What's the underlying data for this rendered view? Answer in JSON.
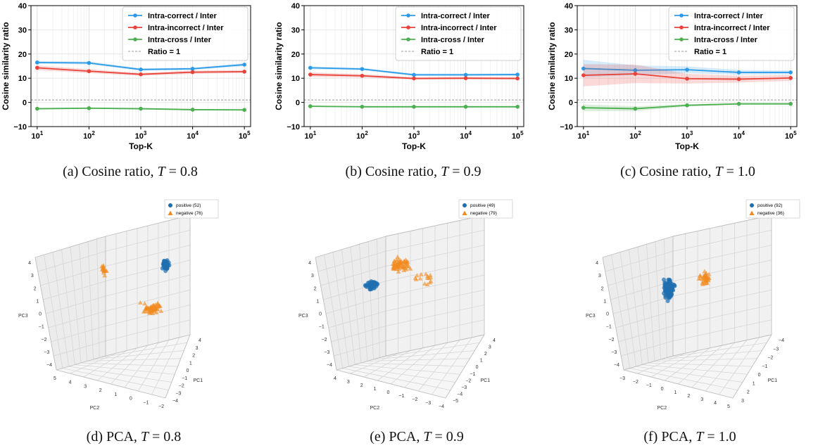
{
  "chart_data": [
    {
      "id": "a",
      "type": "line",
      "caption": {
        "prefix": "(a) Cosine ratio, ",
        "var": "T",
        "value": " = 0.8"
      },
      "xlabel": "Top-K",
      "ylabel": "Cosine similarity ratio",
      "xscale": "log",
      "xticks": [
        "10^1",
        "10^2",
        "10^3",
        "10^4",
        "10^5"
      ],
      "yticks": [
        "40",
        "30",
        "20",
        "10",
        "0",
        "−10"
      ],
      "ylim": [
        -10,
        40
      ],
      "grid": true,
      "legend": {
        "placement": "top-right",
        "entries": [
          "Intra-correct / Inter",
          "Intra-incorrect / Inter",
          "Intra-cross / Inter",
          "Ratio = 1"
        ]
      },
      "x": [
        10,
        100,
        1000,
        10000,
        100000
      ],
      "series": [
        {
          "name": "Intra-correct / Inter",
          "color": "#2b9be8",
          "values": [
            16.5,
            16.3,
            13.6,
            13.9,
            15.6
          ],
          "band": [
            0.6,
            0.6,
            0.5,
            0.5,
            0.6
          ]
        },
        {
          "name": "Intra-incorrect / Inter",
          "color": "#e8433a",
          "values": [
            14.3,
            12.9,
            11.6,
            12.5,
            12.7
          ],
          "band": [
            1.0,
            0.8,
            0.6,
            0.7,
            0.6
          ]
        },
        {
          "name": "Intra-cross / Inter",
          "color": "#4caf50",
          "values": [
            -2.6,
            -2.4,
            -2.6,
            -3.0,
            -3.1
          ],
          "band": [
            0.3,
            0.3,
            0.3,
            0.3,
            0.3
          ]
        }
      ],
      "reference_line": {
        "name": "Ratio = 1",
        "value": 1
      }
    },
    {
      "id": "b",
      "type": "line",
      "caption": {
        "prefix": "(b) Cosine ratio, ",
        "var": "T",
        "value": " = 0.9"
      },
      "xlabel": "Top-K",
      "ylabel": "Cosine similarity ratio",
      "xscale": "log",
      "xticks": [
        "10^1",
        "10^2",
        "10^3",
        "10^4",
        "10^5"
      ],
      "yticks": [
        "40",
        "30",
        "20",
        "10",
        "0",
        "−10"
      ],
      "ylim": [
        -10,
        40
      ],
      "grid": true,
      "legend": {
        "placement": "top-right",
        "entries": [
          "Intra-correct / Inter",
          "Intra-incorrect / Inter",
          "Intra-cross / Inter",
          "Ratio = 1"
        ]
      },
      "x": [
        10,
        100,
        1000,
        10000,
        100000
      ],
      "series": [
        {
          "name": "Intra-correct / Inter",
          "color": "#2b9be8",
          "values": [
            14.3,
            13.8,
            11.4,
            11.4,
            11.5
          ],
          "band": [
            0.6,
            0.5,
            0.5,
            0.5,
            0.5
          ]
        },
        {
          "name": "Intra-incorrect / Inter",
          "color": "#e8433a",
          "values": [
            11.5,
            11.0,
            9.9,
            10.0,
            9.9
          ],
          "band": [
            0.9,
            0.7,
            0.5,
            0.5,
            0.5
          ]
        },
        {
          "name": "Intra-cross / Inter",
          "color": "#4caf50",
          "values": [
            -1.6,
            -1.8,
            -1.8,
            -1.8,
            -1.8
          ],
          "band": [
            0.3,
            0.3,
            0.3,
            0.3,
            0.3
          ]
        }
      ],
      "reference_line": {
        "name": "Ratio = 1",
        "value": 1
      }
    },
    {
      "id": "c",
      "type": "line",
      "caption": {
        "prefix": "(c) Cosine ratio, ",
        "var": "T",
        "value": " = 1.0"
      },
      "xlabel": "Top-K",
      "ylabel": "Cosine similarity ratio",
      "xscale": "log",
      "xticks": [
        "10^1",
        "10^2",
        "10^3",
        "10^4",
        "10^5"
      ],
      "yticks": [
        "40",
        "30",
        "20",
        "10",
        "0",
        "−10"
      ],
      "ylim": [
        -10,
        40
      ],
      "grid": true,
      "legend": {
        "placement": "top-right",
        "entries": [
          "Intra-correct / Inter",
          "Intra-incorrect / Inter",
          "Intra-cross / Inter",
          "Ratio = 1"
        ]
      },
      "x": [
        10,
        100,
        1000,
        10000,
        100000
      ],
      "series": [
        {
          "name": "Intra-correct / Inter",
          "color": "#2b9be8",
          "values": [
            14.0,
            13.3,
            13.5,
            12.4,
            12.4
          ],
          "band": [
            3.6,
            2.0,
            1.4,
            1.0,
            0.8
          ]
        },
        {
          "name": "Intra-incorrect / Inter",
          "color": "#e8433a",
          "values": [
            11.2,
            11.8,
            9.8,
            9.6,
            10.1
          ],
          "band": [
            4.6,
            3.8,
            2.0,
            1.4,
            1.2
          ]
        },
        {
          "name": "Intra-cross / Inter",
          "color": "#4caf50",
          "values": [
            -2.2,
            -2.6,
            -1.2,
            -0.6,
            -0.6
          ],
          "band": [
            1.4,
            1.0,
            0.5,
            0.3,
            0.3
          ]
        }
      ],
      "reference_line": {
        "name": "Ratio = 1",
        "value": 1
      }
    },
    {
      "id": "d",
      "type": "scatter",
      "caption": {
        "prefix": "(d) PCA, ",
        "var": "T",
        "value": " = 0.8"
      },
      "xlabel": "PC1",
      "ylabel": "PC2",
      "zlabel": "PC3",
      "legend": {
        "placement": "top-right",
        "entries": [
          "positive (52)",
          "negative (76)"
        ]
      },
      "colors": {
        "positive": "#1f6fb0",
        "negative": "#f28a1e"
      },
      "ticks": {
        "z": [
          "4",
          "3",
          "2",
          "1",
          "0",
          "−1",
          "−2",
          "−3",
          "−4"
        ],
        "y": [
          "5",
          "4",
          "3",
          "2",
          "1",
          "0",
          "−1",
          "−2"
        ],
        "x": [
          "4",
          "3",
          "2",
          "1",
          "0",
          "−1",
          "−2",
          "−3",
          "−4"
        ]
      },
      "clusters": [
        {
          "label": "positive",
          "center": [
            215,
            101
          ],
          "spread": [
            6,
            10
          ],
          "count": 52
        },
        {
          "label": "negative",
          "center": [
            196,
            163
          ],
          "spread": [
            20,
            10
          ],
          "count": 60
        },
        {
          "label": "negative",
          "center": [
            128,
            108
          ],
          "spread": [
            7,
            12
          ],
          "count": 16
        }
      ]
    },
    {
      "id": "e",
      "type": "scatter",
      "caption": {
        "prefix": "(e) PCA, ",
        "var": "T",
        "value": " = 0.9"
      },
      "xlabel": "PC1",
      "ylabel": "PC2",
      "zlabel": "PC3",
      "legend": {
        "placement": "top-right",
        "entries": [
          "positive (49)",
          "negative (79)"
        ]
      },
      "colors": {
        "positive": "#1f6fb0",
        "negative": "#f28a1e"
      },
      "ticks": {
        "z": [
          "4",
          "3",
          "2",
          "1",
          "0",
          "−1",
          "−2",
          "−3",
          "−4"
        ],
        "y": [
          "4",
          "3",
          "2",
          "1",
          "0",
          "−1",
          "−2",
          "−3",
          "−4"
        ],
        "x": [
          "4",
          "3",
          "2",
          "1",
          "0",
          "−1",
          "−2",
          "−3",
          "−4",
          "−5"
        ]
      },
      "clusters": [
        {
          "label": "positive",
          "center": [
            110,
            130
          ],
          "spread": [
            12,
            8
          ],
          "count": 49
        },
        {
          "label": "negative",
          "center": [
            150,
            100
          ],
          "spread": [
            18,
            12
          ],
          "count": 64
        },
        {
          "label": "negative",
          "center": [
            185,
            120
          ],
          "spread": [
            20,
            14
          ],
          "count": 15
        }
      ]
    },
    {
      "id": "f",
      "type": "scatter",
      "caption": {
        "prefix": "(f) PCA, ",
        "var": "T",
        "value": " = 1.0"
      },
      "xlabel": "PC1",
      "ylabel": "PC2",
      "zlabel": "PC3",
      "legend": {
        "placement": "top-right",
        "entries": [
          "positive (92)",
          "negative (36)"
        ]
      },
      "colors": {
        "positive": "#1f6fb0",
        "negative": "#f28a1e"
      },
      "ticks": {
        "z": [
          "4",
          "3",
          "2",
          "1",
          "0",
          "−1",
          "−2",
          "−3",
          "−4"
        ],
        "y": [
          "−3",
          "−2",
          "−1",
          "0",
          "1",
          "2",
          "3",
          "4",
          "5"
        ],
        "x": [
          "−4",
          "−3",
          "−2",
          "−1",
          "0",
          "1",
          "2",
          "3"
        ]
      },
      "clusters": [
        {
          "label": "positive",
          "center": [
            124,
            135
          ],
          "spread": [
            10,
            18
          ],
          "count": 92
        },
        {
          "label": "negative",
          "center": [
            175,
            120
          ],
          "spread": [
            12,
            14
          ],
          "count": 36
        }
      ]
    }
  ]
}
